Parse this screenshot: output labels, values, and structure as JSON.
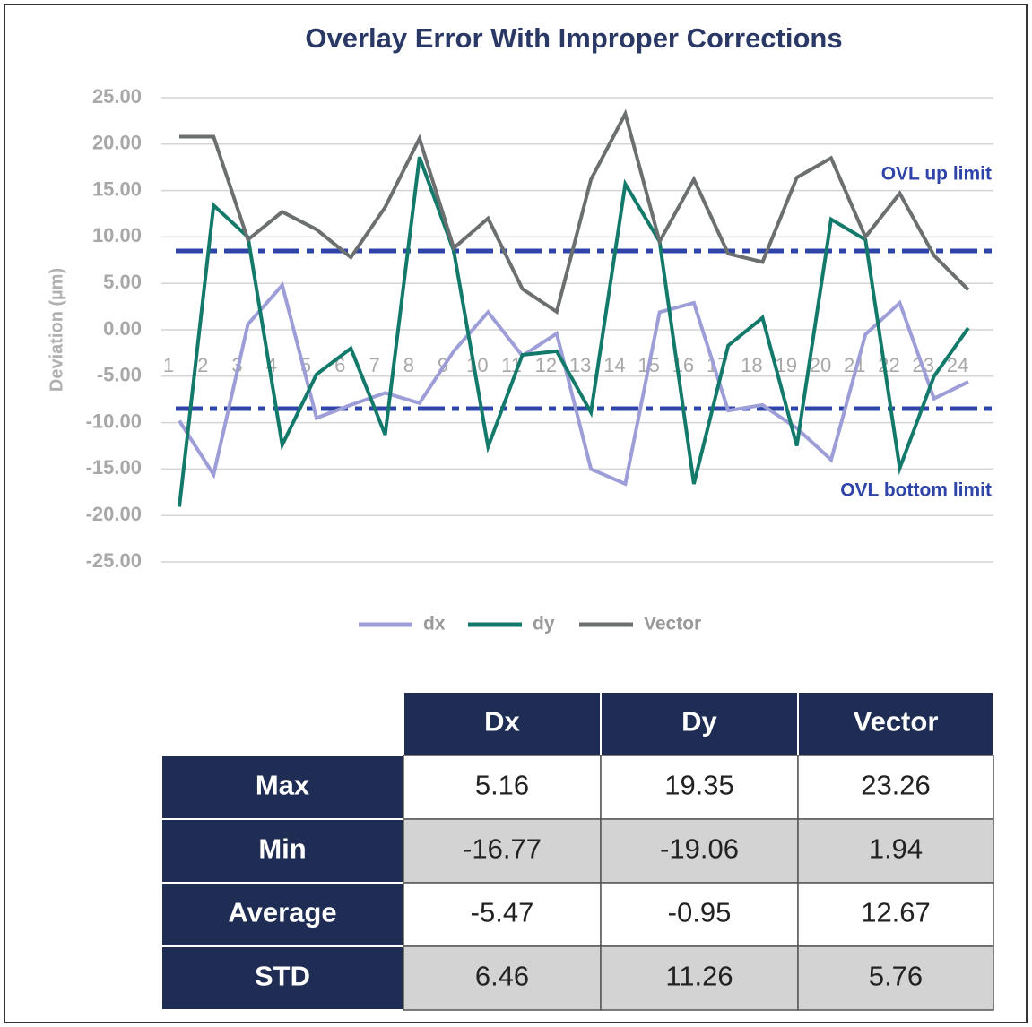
{
  "chart_data": {
    "type": "line",
    "title": "Overlay Error With Improper Corrections",
    "y_label": "Deviation (µm)",
    "categories": [
      "1",
      "2",
      "3",
      "4",
      "5",
      "6",
      "7",
      "8",
      "9",
      "10",
      "11",
      "12",
      "13",
      "14",
      "15",
      "16",
      "17",
      "18",
      "19",
      "20",
      "21",
      "22",
      "23",
      "24"
    ],
    "series": [
      {
        "name": "dx",
        "color": "#9d9dd8",
        "values": [
          -9.8,
          -15.6,
          0.6,
          4.8,
          -9.5,
          -8.1,
          -6.8,
          -7.9,
          -2.3,
          1.9,
          -2.8,
          -0.4,
          -15,
          -16.6,
          1.9,
          2.9,
          -8.7,
          -8.1,
          -10.6,
          -14,
          -0.5,
          2.9,
          -7.4,
          -5.6
        ]
      },
      {
        "name": "dy",
        "color": "#137a6b",
        "values": [
          -19.06,
          13.4,
          10,
          -12.4,
          -4.8,
          -2,
          -11.3,
          18.6,
          8.5,
          -12.6,
          -2.7,
          -2.3,
          -8.9,
          15.7,
          9.5,
          -16.6,
          -1.7,
          1.3,
          -12.5,
          11.9,
          9.7,
          -14.9,
          -5,
          0.2
        ]
      },
      {
        "name": "Vector",
        "color": "#6b6f6f",
        "values": [
          20.8,
          20.8,
          9.7,
          12.7,
          10.8,
          7.8,
          13.2,
          20.6,
          8.8,
          12,
          4.4,
          1.94,
          16.2,
          23.26,
          9.5,
          16.2,
          8.2,
          7.3,
          16.4,
          18.5,
          10,
          14.7,
          8,
          4.3
        ]
      }
    ],
    "limits": [
      {
        "label": "OVL up limit",
        "value": 8.5,
        "color": "#2e44a8"
      },
      {
        "label": "OVL bottom limit",
        "value": -8.5,
        "color": "#2e44a8"
      }
    ],
    "ylim": [
      -25,
      25
    ],
    "yticks": [
      {
        "value": -25,
        "label": "-25.00"
      },
      {
        "value": -20,
        "label": "-20.00"
      },
      {
        "value": -15,
        "label": "-15.00"
      },
      {
        "value": -10,
        "label": "-10.00"
      },
      {
        "value": -5,
        "label": "-5.00"
      },
      {
        "value": 0,
        "label": "0.00"
      },
      {
        "value": 5,
        "label": "5.00"
      },
      {
        "value": 10,
        "label": "10.00"
      },
      {
        "value": 15,
        "label": "15.00"
      },
      {
        "value": 20,
        "label": "20.00"
      },
      {
        "value": 25,
        "label": "25.00"
      }
    ],
    "grid": true,
    "legend": "bottom"
  },
  "table": {
    "columns": [
      "Dx",
      "Dy",
      "Vector"
    ],
    "rows": [
      {
        "label": "Max",
        "values": [
          5.16,
          19.35,
          23.26
        ]
      },
      {
        "label": "Min",
        "values": [
          -16.77,
          -19.06,
          1.94
        ]
      },
      {
        "label": "Average",
        "values": [
          -5.47,
          -0.95,
          12.67
        ]
      },
      {
        "label": "STD",
        "values": [
          6.46,
          11.26,
          5.76
        ]
      }
    ]
  }
}
